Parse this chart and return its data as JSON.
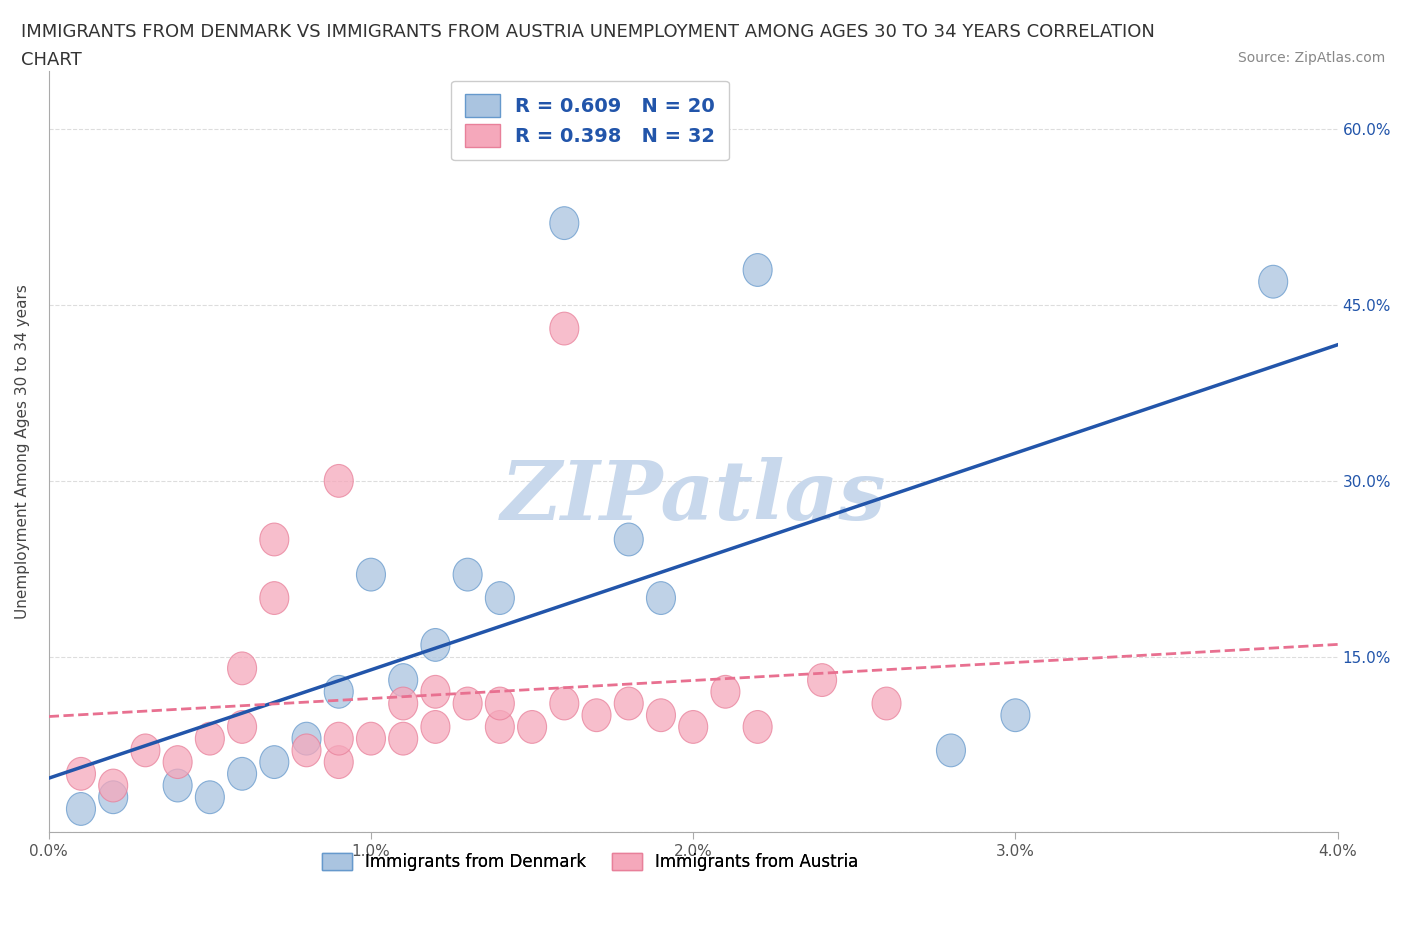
{
  "title_line1": "IMMIGRANTS FROM DENMARK VS IMMIGRANTS FROM AUSTRIA UNEMPLOYMENT AMONG AGES 30 TO 34 YEARS CORRELATION",
  "title_line2": "CHART",
  "source": "Source: ZipAtlas.com",
  "ylabel": "Unemployment Among Ages 30 to 34 years",
  "denmark_x": [
    0.001,
    0.002,
    0.004,
    0.005,
    0.006,
    0.007,
    0.008,
    0.009,
    0.01,
    0.011,
    0.012,
    0.013,
    0.014,
    0.016,
    0.018,
    0.019,
    0.022,
    0.028,
    0.03,
    0.038
  ],
  "denmark_y": [
    0.02,
    0.03,
    0.04,
    0.03,
    0.05,
    0.06,
    0.08,
    0.12,
    0.22,
    0.13,
    0.16,
    0.22,
    0.2,
    0.52,
    0.25,
    0.2,
    0.48,
    0.07,
    0.1,
    0.47
  ],
  "austria_x": [
    0.001,
    0.002,
    0.003,
    0.004,
    0.005,
    0.006,
    0.006,
    0.007,
    0.007,
    0.008,
    0.009,
    0.009,
    0.009,
    0.01,
    0.011,
    0.011,
    0.012,
    0.012,
    0.013,
    0.014,
    0.014,
    0.015,
    0.016,
    0.016,
    0.017,
    0.018,
    0.019,
    0.02,
    0.021,
    0.022,
    0.024,
    0.026
  ],
  "austria_y": [
    0.05,
    0.04,
    0.07,
    0.06,
    0.08,
    0.09,
    0.14,
    0.2,
    0.25,
    0.07,
    0.06,
    0.08,
    0.3,
    0.08,
    0.08,
    0.11,
    0.09,
    0.12,
    0.11,
    0.09,
    0.11,
    0.09,
    0.11,
    0.43,
    0.1,
    0.11,
    0.1,
    0.09,
    0.12,
    0.09,
    0.13,
    0.11
  ],
  "denmark_color": "#aac4e0",
  "austria_color": "#f5a8bb",
  "denmark_edge_color": "#6699cc",
  "austria_edge_color": "#e8809a",
  "denmark_line_color": "#2255aa",
  "austria_line_color": "#e87090",
  "R_denmark": 0.609,
  "N_denmark": 20,
  "R_austria": 0.398,
  "N_austria": 32,
  "xlim": [
    0.0,
    0.04
  ],
  "ylim": [
    0.0,
    0.65
  ],
  "xticks": [
    0.0,
    0.01,
    0.02,
    0.03,
    0.04
  ],
  "xtick_labels": [
    "0.0%",
    "1.0%",
    "2.0%",
    "3.0%",
    "4.0%"
  ],
  "yticks": [
    0.0,
    0.15,
    0.3,
    0.45,
    0.6
  ],
  "ytick_labels_right": [
    "",
    "15.0%",
    "30.0%",
    "45.0%",
    "60.0%"
  ],
  "watermark_text": "ZIPatlas",
  "watermark_color": "#c8d8ec",
  "title_fontsize": 13,
  "source_fontsize": 10,
  "legend_text_color": "#2255aa",
  "legend_N_color": "#cc2222",
  "axis_tick_color": "#aaaaaa",
  "grid_color": "#dddddd",
  "ylabel_color": "#444444"
}
